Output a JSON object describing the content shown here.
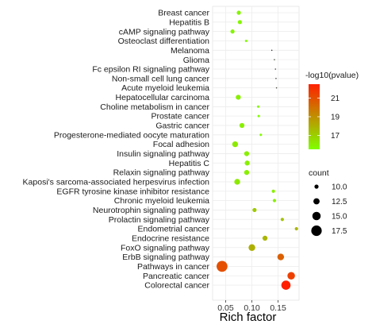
{
  "chart_data": {
    "type": "scatter",
    "title": "",
    "xlabel": "Rich factor",
    "ylabel": "",
    "xlim": [
      0.025,
      0.19
    ],
    "xticks": [
      0.05,
      0.1,
      0.15
    ],
    "xtick_labels": [
      "0.05",
      "0.10",
      "0.15"
    ],
    "grid": true,
    "legend_placement": "right",
    "points": [
      {
        "term": "Breast cancer",
        "rich_factor": 0.075,
        "neg_log10_pvalue": 15.8,
        "count": 10
      },
      {
        "term": "Hepatitis B",
        "rich_factor": 0.077,
        "neg_log10_pvalue": 15.8,
        "count": 10
      },
      {
        "term": "cAMP signaling pathway",
        "rich_factor": 0.063,
        "neg_log10_pvalue": 15.8,
        "count": 10
      },
      {
        "term": "Osteoclast differentiation",
        "rich_factor": 0.089,
        "neg_log10_pvalue": 15.5,
        "count": 8
      },
      {
        "term": "Melanoma",
        "rich_factor": 0.138,
        "neg_log10_pvalue": 15.5,
        "count": 6
      },
      {
        "term": "Glioma",
        "rich_factor": 0.143,
        "neg_log10_pvalue": 15.5,
        "count": 6
      },
      {
        "term": "Fc epsilon RI signaling pathway",
        "rich_factor": 0.145,
        "neg_log10_pvalue": 15.5,
        "count": 6
      },
      {
        "term": "Non-small cell lung cancer",
        "rich_factor": 0.146,
        "neg_log10_pvalue": 15.5,
        "count": 6
      },
      {
        "term": "Acute myeloid leukemia",
        "rich_factor": 0.147,
        "neg_log10_pvalue": 15.5,
        "count": 6
      },
      {
        "term": "Hepatocellular carcinoma",
        "rich_factor": 0.074,
        "neg_log10_pvalue": 16.0,
        "count": 11
      },
      {
        "term": "Choline metabolism in cancer",
        "rich_factor": 0.112,
        "neg_log10_pvalue": 15.6,
        "count": 8
      },
      {
        "term": "Prostate cancer",
        "rich_factor": 0.113,
        "neg_log10_pvalue": 15.6,
        "count": 8
      },
      {
        "term": "Gastric cancer",
        "rich_factor": 0.081,
        "neg_log10_pvalue": 16.0,
        "count": 11
      },
      {
        "term": "Progesterone-mediated oocyte maturation",
        "rich_factor": 0.117,
        "neg_log10_pvalue": 15.6,
        "count": 8
      },
      {
        "term": "Focal adhesion",
        "rich_factor": 0.068,
        "neg_log10_pvalue": 16.2,
        "count": 12
      },
      {
        "term": "Insulin signaling pathway",
        "rich_factor": 0.09,
        "neg_log10_pvalue": 16.0,
        "count": 11
      },
      {
        "term": "Hepatitis C",
        "rich_factor": 0.091,
        "neg_log10_pvalue": 16.0,
        "count": 11
      },
      {
        "term": "Relaxin signaling pathway",
        "rich_factor": 0.09,
        "neg_log10_pvalue": 16.0,
        "count": 11
      },
      {
        "term": "Kaposi's sarcoma-associated herpesvirus infection",
        "rich_factor": 0.072,
        "neg_log10_pvalue": 16.2,
        "count": 12
      },
      {
        "term": "EGFR tyrosine kinase inhibitor resistance",
        "rich_factor": 0.141,
        "neg_log10_pvalue": 16.0,
        "count": 9
      },
      {
        "term": "Chronic myeloid leukemia",
        "rich_factor": 0.143,
        "neg_log10_pvalue": 16.0,
        "count": 9
      },
      {
        "term": "Neurotrophin signaling pathway",
        "rich_factor": 0.105,
        "neg_log10_pvalue": 17.2,
        "count": 10
      },
      {
        "term": "Prolactin signaling pathway",
        "rich_factor": 0.158,
        "neg_log10_pvalue": 17.4,
        "count": 9
      },
      {
        "term": "Endometrial cancer",
        "rich_factor": 0.185,
        "neg_log10_pvalue": 17.8,
        "count": 9
      },
      {
        "term": "Endocrine resistance",
        "rich_factor": 0.125,
        "neg_log10_pvalue": 17.8,
        "count": 11
      },
      {
        "term": "FoxO signaling pathway",
        "rich_factor": 0.1,
        "neg_log10_pvalue": 18.0,
        "count": 13
      },
      {
        "term": "ErbB signaling pathway",
        "rich_factor": 0.155,
        "neg_log10_pvalue": 20.5,
        "count": 13
      },
      {
        "term": "Pathways in cancer",
        "rich_factor": 0.043,
        "neg_log10_pvalue": 21.0,
        "count": 18
      },
      {
        "term": "Pancreatic cancer",
        "rich_factor": 0.175,
        "neg_log10_pvalue": 21.5,
        "count": 14
      },
      {
        "term": "Colorectal cancer",
        "rich_factor": 0.165,
        "neg_log10_pvalue": 22.5,
        "count": 16
      }
    ],
    "color_legend": {
      "title": "-log10(pvalue)",
      "ticks": [
        17,
        19,
        21
      ],
      "tick_labels": [
        "17",
        "19",
        "21"
      ],
      "range": [
        15.5,
        22.5
      ],
      "low_color": "#80ff00",
      "high_color": "#ff2000"
    },
    "size_legend": {
      "title": "count",
      "values": [
        10,
        12.5,
        15,
        17.5
      ],
      "labels": [
        "10.0",
        "12.5",
        "15.0",
        "17.5"
      ]
    }
  }
}
